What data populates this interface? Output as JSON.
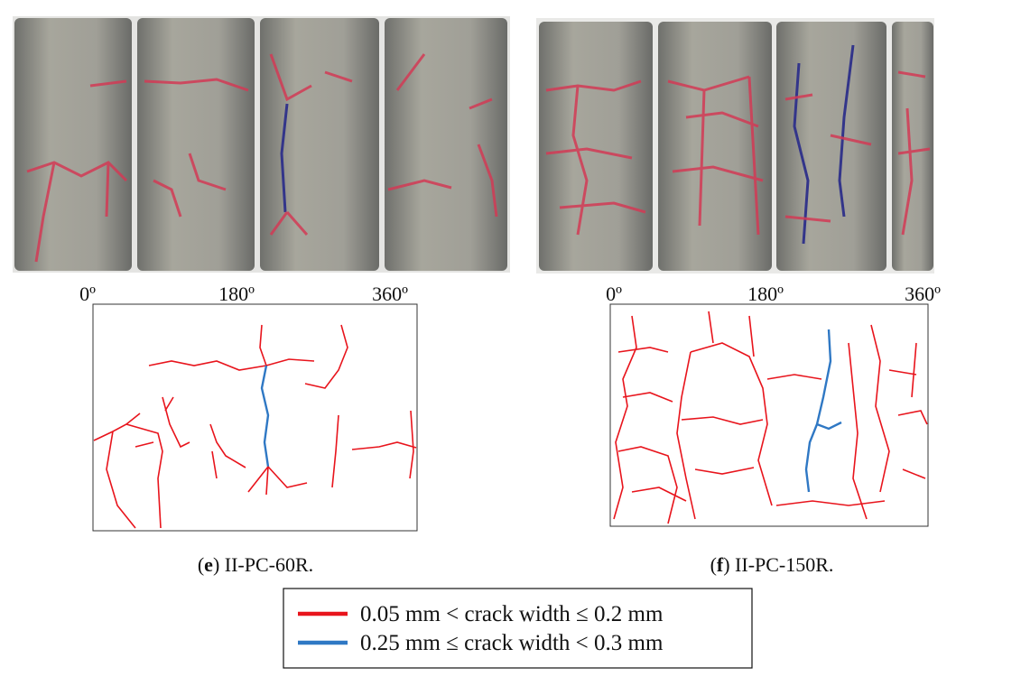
{
  "panels": [
    {
      "angles": [
        "0º",
        "180º",
        "360º"
      ],
      "caption_parts": [
        "(",
        "e",
        ") II-PC-60R."
      ]
    },
    {
      "angles": [
        "0º",
        "180º",
        "360º"
      ],
      "caption_parts": [
        "(",
        "f",
        ") II-PC-150R."
      ]
    }
  ],
  "legend": [
    {
      "label": "0.05 mm < crack width ≤ 0.2 mm",
      "color": "#e8141c"
    },
    {
      "label": "0.25 mm ≤ crack width < 0.3 mm",
      "color": "#2f78c4"
    }
  ]
}
